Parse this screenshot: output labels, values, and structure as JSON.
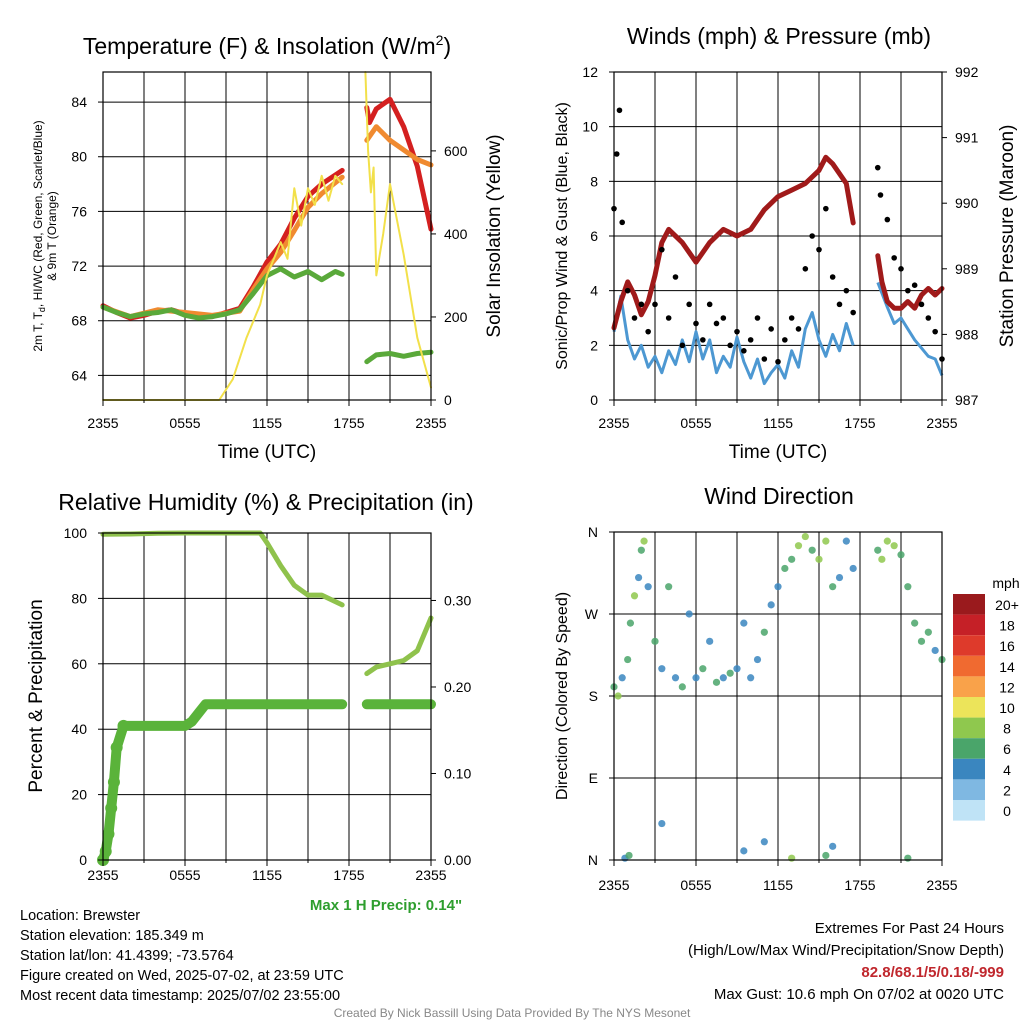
{
  "chart_data": [
    {
      "type": "line",
      "title": "Temperature (F) & Insolation (W/m²)",
      "xlabel": "Time (UTC)",
      "ylabel": "2m T, Td, HI/WC (Red, Green, Scarlet/Blue) & 9m T (Orange)",
      "ylabel2": "Solar Insolation (Yellow)",
      "x_ticks": [
        "2355",
        "0555",
        "1155",
        "1755",
        "2355"
      ],
      "y_ticks": [
        "64",
        "68",
        "72",
        "76",
        "80",
        "84"
      ],
      "y2_ticks": [
        "0",
        "200",
        "400",
        "600"
      ],
      "ylim": [
        62.2,
        86.2
      ],
      "y2lim": [
        0,
        790
      ],
      "xlim": [
        0,
        24
      ],
      "series": [
        {
          "color": "#d42020",
          "x": [
            0,
            1,
            2,
            3,
            4,
            5,
            6,
            7,
            8,
            9,
            10,
            11,
            12,
            13,
            14,
            15,
            16,
            17.5,
            19.3,
            19.5,
            20,
            21,
            22,
            23,
            24
          ],
          "y": [
            69.1,
            68.6,
            68.2,
            68.4,
            68.7,
            68.8,
            68.5,
            68.3,
            68.3,
            68.6,
            68.9,
            70.5,
            72.3,
            73.6,
            75.5,
            77.1,
            78.0,
            79.0,
            83.6,
            82.5,
            83.5,
            84.2,
            82.2,
            79.3,
            74.7
          ]
        },
        {
          "color": "#f08a30",
          "x": [
            0,
            2,
            4,
            6,
            8,
            10,
            11,
            12,
            13,
            14,
            15,
            16,
            17.5,
            19.3,
            20,
            21,
            22,
            23,
            24
          ],
          "y": [
            69.0,
            68.3,
            68.8,
            68.6,
            68.4,
            68.7,
            70.3,
            71.8,
            73.0,
            74.6,
            76.3,
            77.3,
            78.5,
            81.2,
            82.2,
            81.2,
            80.5,
            79.8,
            79.4
          ]
        },
        {
          "color": "#5aa93a",
          "x": [
            0,
            1,
            2,
            3,
            4,
            5,
            6,
            7,
            8,
            9,
            10,
            11,
            12,
            13,
            14,
            15,
            16,
            17,
            17.5,
            19.3,
            20,
            21,
            22,
            23,
            24
          ],
          "y": [
            69.0,
            68.6,
            68.3,
            68.5,
            68.6,
            68.8,
            68.4,
            68.2,
            68.3,
            68.5,
            68.8,
            70.0,
            71.3,
            71.8,
            71.2,
            71.6,
            71.0,
            71.6,
            71.4,
            65.0,
            65.5,
            65.6,
            65.4,
            65.6,
            65.7
          ]
        },
        {
          "color": "#f2e04a",
          "axis": "right",
          "x": [
            0,
            6,
            8.5,
            9.5,
            10.5,
            11.5,
            12,
            13,
            13.5,
            14,
            14.5,
            15,
            15.5,
            16,
            16.5,
            17,
            17.5,
            19.2,
            19.4,
            19.6,
            19.8,
            20,
            20.5,
            21,
            22,
            23,
            24
          ],
          "y": [
            0,
            0,
            0,
            50,
            150,
            230,
            300,
            380,
            340,
            510,
            420,
            510,
            470,
            540,
            480,
            540,
            520,
            790,
            600,
            500,
            560,
            300,
            400,
            520,
            350,
            150,
            30
          ]
        }
      ]
    },
    {
      "type": "scatter",
      "title": "Winds (mph) & Pressure (mb)",
      "xlabel": "Time (UTC)",
      "ylabel": "Sonic/Prop Wind & Gust (Blue, Black)",
      "ylabel2": "Station Pressure (Maroon)",
      "x_ticks": [
        "2355",
        "0555",
        "1155",
        "1755",
        "2355"
      ],
      "y_ticks": [
        "0",
        "2",
        "4",
        "6",
        "8",
        "10",
        "12"
      ],
      "y2_ticks": [
        "987",
        "988",
        "989",
        "990",
        "991",
        "992"
      ],
      "ylim": [
        0,
        12
      ],
      "y2lim": [
        987,
        992
      ],
      "xlim": [
        0,
        24
      ],
      "series": [
        {
          "name_hidden": "wind",
          "color": "#4d98d2",
          "x": [
            0,
            0.5,
            1,
            1.5,
            2,
            2.5,
            3,
            3.5,
            4,
            4.5,
            5,
            5.5,
            6,
            6.5,
            7,
            7.5,
            8,
            8.5,
            9,
            9.5,
            10,
            10.5,
            11,
            11.5,
            12,
            12.5,
            13,
            13.5,
            14,
            14.5,
            15,
            15.5,
            16,
            16.5,
            17,
            17.5,
            19.3,
            20,
            20.5,
            21,
            21.5,
            22,
            22.5,
            23,
            23.5,
            24
          ],
          "y": [
            2.5,
            3.8,
            2.2,
            1.5,
            2.0,
            1.2,
            1.6,
            1.0,
            1.8,
            1.3,
            2.2,
            1.4,
            2.5,
            1.5,
            2.2,
            1.0,
            1.6,
            1.2,
            2.3,
            1.4,
            0.8,
            1.5,
            0.6,
            1.0,
            1.3,
            0.8,
            1.8,
            1.2,
            2.6,
            3.2,
            2.2,
            1.6,
            2.4,
            1.8,
            2.8,
            2.0,
            4.3,
            3.4,
            2.8,
            3.0,
            2.6,
            2.2,
            1.9,
            1.6,
            1.5,
            0.9
          ]
        },
        {
          "name_hidden": "gust",
          "color": "#000000",
          "x": [
            0,
            0.2,
            0.4,
            0.6,
            1,
            1.5,
            2,
            2.5,
            3,
            3.5,
            4,
            4.5,
            5,
            5.5,
            6,
            6.5,
            7,
            7.5,
            8,
            8.5,
            9,
            9.5,
            10,
            10.5,
            11,
            11.5,
            12,
            12.5,
            13,
            13.5,
            14,
            14.5,
            15,
            15.5,
            16,
            16.5,
            17,
            17.5,
            19.3,
            19.5,
            20,
            20.5,
            21,
            21.5,
            22,
            22.5,
            23,
            23.5,
            24
          ],
          "y": [
            7.0,
            9.0,
            10.6,
            6.5,
            4.0,
            3.0,
            3.5,
            2.5,
            3.5,
            5.5,
            3.0,
            4.5,
            2.0,
            3.5,
            2.8,
            2.2,
            3.5,
            2.8,
            3.0,
            2.0,
            2.5,
            1.8,
            2.2,
            3.0,
            1.5,
            2.6,
            1.4,
            2.2,
            3.0,
            2.6,
            4.8,
            6.0,
            5.5,
            7.0,
            4.5,
            3.5,
            4.0,
            3.2,
            8.5,
            7.5,
            6.6,
            5.2,
            4.8,
            4.0,
            4.2,
            3.5,
            3.0,
            2.5,
            1.5
          ]
        },
        {
          "name_hidden": "pressure",
          "color": "#a01a1a",
          "axis": "right",
          "x": [
            0,
            0.5,
            1,
            1.5,
            2,
            2.5,
            3,
            3.5,
            4,
            5,
            6,
            7,
            8,
            9,
            10,
            11,
            12,
            13,
            14,
            15,
            15.5,
            16,
            17,
            17.5,
            19.3,
            19.6,
            20,
            20.5,
            21,
            21.5,
            22,
            22.5,
            23,
            23.5,
            24
          ],
          "y": [
            988.1,
            988.5,
            988.8,
            988.6,
            988.3,
            988.5,
            988.9,
            989.4,
            989.6,
            989.4,
            989.1,
            989.4,
            989.6,
            989.5,
            989.6,
            989.9,
            990.1,
            990.2,
            990.3,
            990.5,
            990.7,
            990.6,
            990.3,
            989.7,
            989.2,
            988.8,
            988.5,
            988.4,
            988.4,
            988.5,
            988.4,
            988.6,
            988.7,
            988.6,
            988.7
          ]
        }
      ]
    },
    {
      "type": "line",
      "title": "Relative Humidity (%) & Precipitation (in)",
      "ylabel": "Percent & Precipitation",
      "x_ticks": [
        "2355",
        "0555",
        "1155",
        "1755",
        "2355"
      ],
      "y_ticks": [
        "0",
        "20",
        "40",
        "60",
        "80",
        "100"
      ],
      "y2_ticks": [
        "0.00",
        "0.10",
        "0.20",
        "0.30"
      ],
      "ylim": [
        0,
        100
      ],
      "y2lim": [
        0,
        0.378
      ],
      "xlim": [
        0,
        24
      ],
      "series": [
        {
          "color": "#8fc24c",
          "x": [
            0,
            2,
            4,
            6,
            8,
            10,
            11.5,
            12,
            13,
            14,
            15,
            16,
            17.5,
            19.3,
            20,
            21,
            22,
            23,
            24
          ],
          "y": [
            99.6,
            99.7,
            99.9,
            100,
            100,
            100,
            100,
            97,
            90,
            84,
            81,
            81,
            78,
            57,
            59,
            60,
            61,
            64,
            74
          ]
        },
        {
          "color": "#5ab33a",
          "axis": "right",
          "x": [
            0,
            0.2,
            0.4,
            0.6,
            0.8,
            1,
            1.5,
            2,
            3,
            4,
            5,
            6,
            6.5,
            7,
            7.5,
            8,
            10,
            12,
            14,
            16,
            17.5,
            19.3,
            20,
            22,
            24
          ],
          "y": [
            0,
            0.01,
            0.03,
            0.06,
            0.09,
            0.13,
            0.155,
            0.155,
            0.155,
            0.155,
            0.155,
            0.155,
            0.16,
            0.17,
            0.18,
            0.18,
            0.18,
            0.18,
            0.18,
            0.18,
            0.18,
            0.18,
            0.18,
            0.18,
            0.18
          ]
        }
      ]
    },
    {
      "type": "scatter",
      "title": "Wind Direction",
      "ylabel": "Direction (Colored By Speed)",
      "x_ticks": [
        "2355",
        "0555",
        "1155",
        "1755",
        "2355"
      ],
      "y_ticks": [
        "N",
        "E",
        "S",
        "W",
        "N"
      ],
      "ylim": [
        0,
        360
      ],
      "xlim": [
        0,
        24
      ],
      "legend_title": "mph",
      "legend_labels": [
        "20+",
        "18",
        "16",
        "14",
        "12",
        "10",
        "8",
        "6",
        "4",
        "2",
        "0"
      ],
      "legend_colors": [
        "#9a1a1d",
        "#c52027",
        "#de3a2b",
        "#f06a30",
        "#f9a24a",
        "#ece45a",
        "#8fc84e",
        "#4aa56a",
        "#3a86bf",
        "#7fb8e2",
        "#bfe3f6"
      ],
      "points": [
        {
          "x": 0,
          "y": 190,
          "s": 3
        },
        {
          "x": 0.3,
          "y": 180,
          "s": 4
        },
        {
          "x": 0.6,
          "y": 200,
          "s": 2
        },
        {
          "x": 1,
          "y": 220,
          "s": 3
        },
        {
          "x": 1.2,
          "y": 260,
          "s": 3
        },
        {
          "x": 1.5,
          "y": 290,
          "s": 4
        },
        {
          "x": 1.8,
          "y": 310,
          "s": 2
        },
        {
          "x": 2,
          "y": 340,
          "s": 3
        },
        {
          "x": 2.2,
          "y": 350,
          "s": 4
        },
        {
          "x": 2.5,
          "y": 300,
          "s": 2
        },
        {
          "x": 3,
          "y": 240,
          "s": 3
        },
        {
          "x": 3.5,
          "y": 210,
          "s": 2
        },
        {
          "x": 4,
          "y": 300,
          "s": 3
        },
        {
          "x": 4.5,
          "y": 200,
          "s": 2
        },
        {
          "x": 5,
          "y": 190,
          "s": 3
        },
        {
          "x": 5.5,
          "y": 270,
          "s": 2
        },
        {
          "x": 6,
          "y": 200,
          "s": 2
        },
        {
          "x": 6.5,
          "y": 210,
          "s": 3
        },
        {
          "x": 7,
          "y": 240,
          "s": 2
        },
        {
          "x": 7.5,
          "y": 195,
          "s": 3
        },
        {
          "x": 8,
          "y": 200,
          "s": 2
        },
        {
          "x": 8.5,
          "y": 205,
          "s": 3
        },
        {
          "x": 9,
          "y": 210,
          "s": 2
        },
        {
          "x": 9.5,
          "y": 260,
          "s": 2
        },
        {
          "x": 10,
          "y": 200,
          "s": 2
        },
        {
          "x": 10.5,
          "y": 220,
          "s": 2
        },
        {
          "x": 11,
          "y": 250,
          "s": 3
        },
        {
          "x": 11.5,
          "y": 280,
          "s": 2
        },
        {
          "x": 12,
          "y": 300,
          "s": 2
        },
        {
          "x": 12.5,
          "y": 320,
          "s": 3
        },
        {
          "x": 13,
          "y": 330,
          "s": 3
        },
        {
          "x": 13.5,
          "y": 345,
          "s": 4
        },
        {
          "x": 14,
          "y": 355,
          "s": 4
        },
        {
          "x": 14.5,
          "y": 340,
          "s": 3
        },
        {
          "x": 15,
          "y": 330,
          "s": 4
        },
        {
          "x": 15.5,
          "y": 350,
          "s": 4
        },
        {
          "x": 16,
          "y": 300,
          "s": 3
        },
        {
          "x": 16.5,
          "y": 310,
          "s": 2
        },
        {
          "x": 17,
          "y": 350,
          "s": 2
        },
        {
          "x": 17.5,
          "y": 320,
          "s": 2
        },
        {
          "x": 0.8,
          "y": 2,
          "s": 2
        },
        {
          "x": 1.1,
          "y": 5,
          "s": 3
        },
        {
          "x": 3.5,
          "y": 40,
          "s": 2
        },
        {
          "x": 9.5,
          "y": 10,
          "s": 2
        },
        {
          "x": 11,
          "y": 20,
          "s": 2
        },
        {
          "x": 13,
          "y": 2,
          "s": 4
        },
        {
          "x": 15.5,
          "y": 5,
          "s": 3
        },
        {
          "x": 16,
          "y": 15,
          "s": 2
        },
        {
          "x": 21.5,
          "y": 2,
          "s": 3
        },
        {
          "x": 19.3,
          "y": 340,
          "s": 3
        },
        {
          "x": 19.6,
          "y": 330,
          "s": 4
        },
        {
          "x": 20,
          "y": 350,
          "s": 4
        },
        {
          "x": 20.5,
          "y": 345,
          "s": 4
        },
        {
          "x": 21,
          "y": 335,
          "s": 3
        },
        {
          "x": 21.5,
          "y": 300,
          "s": 3
        },
        {
          "x": 22,
          "y": 260,
          "s": 3
        },
        {
          "x": 22.5,
          "y": 240,
          "s": 3
        },
        {
          "x": 23,
          "y": 250,
          "s": 3
        },
        {
          "x": 23.5,
          "y": 230,
          "s": 2
        },
        {
          "x": 24,
          "y": 220,
          "s": 3
        }
      ]
    }
  ],
  "panel_titles": {
    "temp": "Temperature (F) & Insolation (W/m",
    "temp_sup": "2",
    "temp_end": ")",
    "wind": "Winds (mph) & Pressure (mb)",
    "rh": "Relative Humidity (%) & Precipitation (in)",
    "dir": "Wind Direction"
  },
  "axis_labels": {
    "temp_left_line1": "2m T, T",
    "temp_left_sub": "d",
    "temp_left_line1_rest": ", HI/WC (Red, Green, Scarlet/Blue)",
    "temp_left_line2": "& 9m T (Orange)",
    "temp_right": "Solar Insolation (Yellow)",
    "time": "Time (UTC)",
    "wind_left": "Sonic/Prop Wind & Gust (Blue, Black)",
    "wind_right": "Station Pressure (Maroon)",
    "rh_left": "Percent & Precipitation",
    "dir_left": "Direction (Colored By Speed)"
  },
  "max_precip": "Max 1 H Precip: 0.14\"",
  "info": {
    "location": "Location: Brewster",
    "elevation": "Station elevation: 185.349 m",
    "latlon": "Station lat/lon: 41.4399; -73.5764",
    "created": "Figure created on Wed, 2025-07-02, at 23:59 UTC",
    "recent": "Most recent data timestamp: 2025/07/02 23:55:00"
  },
  "extremes": {
    "title": "Extremes For Past 24 Hours",
    "subtitle": "(High/Low/Max Wind/Precipitation/Snow Depth)",
    "values": "82.8/68.1/5/0.18/-999",
    "gust": "Max Gust: 10.6 mph On 07/02 at 0020 UTC"
  },
  "footer": "Created By Nick Bassill Using Data Provided By The NYS Mesonet"
}
